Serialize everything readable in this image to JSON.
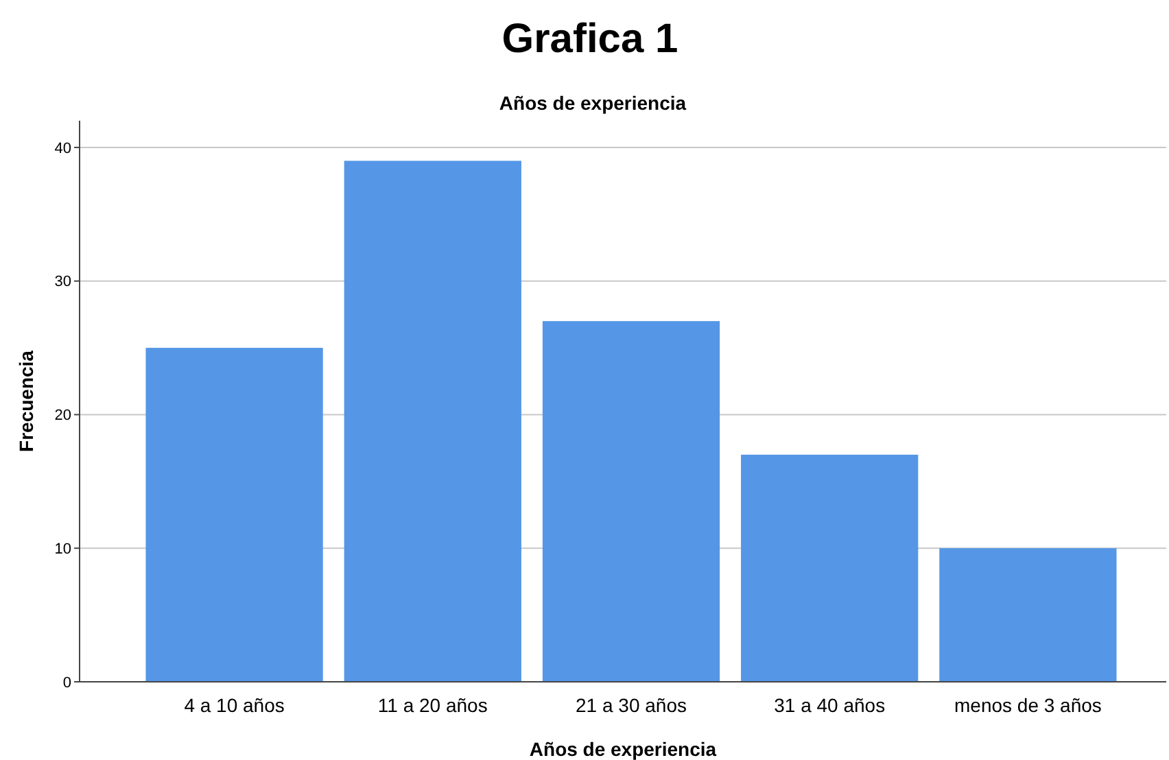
{
  "chart_data": {
    "type": "bar",
    "title": "Grafica 1",
    "subtitle": "Años de experiencia",
    "xlabel": "Años de experiencia",
    "ylabel": "Frecuencia",
    "categories": [
      "4 a 10 años",
      "11 a 20 años",
      "21 a 30 años",
      "31 a 40 años",
      "menos de 3 años"
    ],
    "values": [
      25,
      39,
      27,
      17,
      10
    ],
    "color": "#5596e6",
    "ylim": [
      0,
      42
    ],
    "yticks": [
      0,
      10,
      20,
      30,
      40
    ],
    "grid": "y"
  }
}
